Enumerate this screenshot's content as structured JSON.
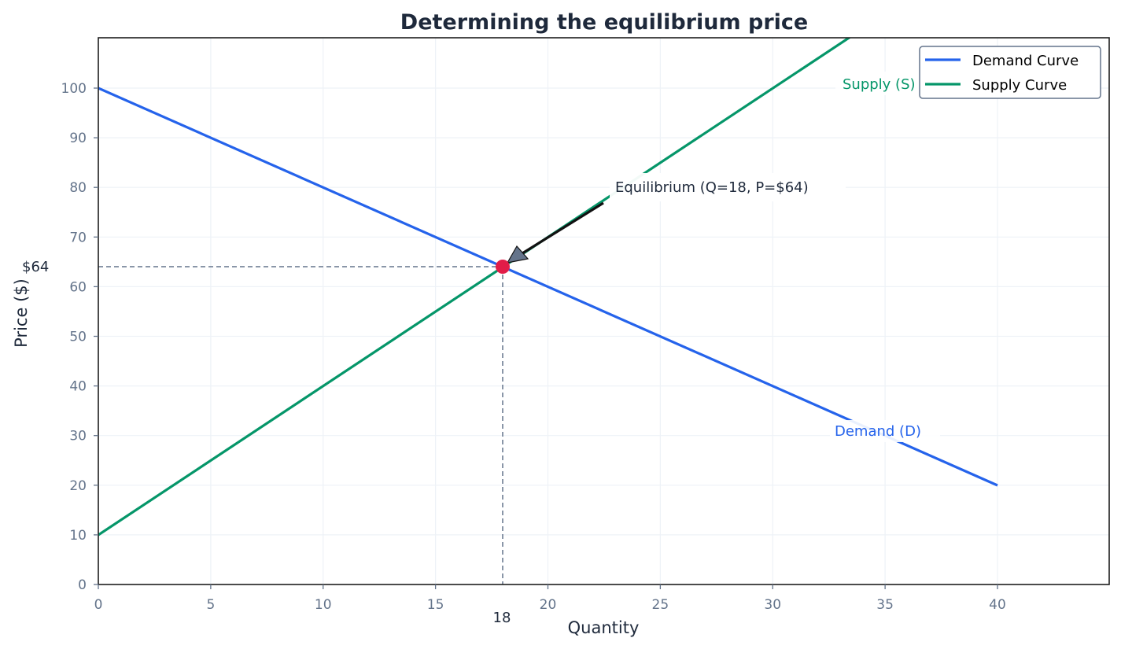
{
  "chart_data": {
    "type": "line",
    "title": "Determining the equilibrium price",
    "xlabel": "Quantity",
    "ylabel": "Price ($)",
    "xlim": [
      0,
      45
    ],
    "ylim": [
      0,
      110
    ],
    "xticks": [
      0,
      5,
      10,
      15,
      20,
      25,
      30,
      35,
      40
    ],
    "yticks": [
      0,
      10,
      20,
      30,
      40,
      50,
      60,
      70,
      80,
      90,
      100
    ],
    "grid": true,
    "legend_position": "upper right",
    "series": [
      {
        "name": "Demand Curve",
        "color": "#2563eb",
        "x": [
          0,
          40
        ],
        "y": [
          100,
          20
        ],
        "label": "Demand (D)",
        "label_at": [
          33,
          30
        ]
      },
      {
        "name": "Supply Curve",
        "color": "#059669",
        "x": [
          0,
          40
        ],
        "y": [
          10,
          130
        ],
        "label": "Supply (S)",
        "label_at": [
          33,
          100
        ]
      }
    ],
    "equilibrium": {
      "q": 18,
      "p": 64,
      "color": "#e11d48"
    },
    "annotations": [
      {
        "text": "Equilibrium (Q=18, P=$64)",
        "xy": [
          18,
          64
        ],
        "xytext": [
          23,
          80
        ]
      },
      {
        "text": "$64",
        "position": "y-axis",
        "value": 64
      },
      {
        "text": "18",
        "position": "x-axis",
        "value": 18
      }
    ]
  },
  "labels": {
    "title": "Determining the equilibrium price",
    "xlabel": "Quantity",
    "ylabel": "Price ($)",
    "demand_label": "Demand (D)",
    "supply_label": "Supply (S)",
    "eq_annotation": "Equilibrium (Q=18, P=$64)",
    "eq_price_label": "$64",
    "eq_qty_label": "18",
    "legend_demand": "Demand Curve",
    "legend_supply": "Supply Curve"
  },
  "colors": {
    "demand": "#2563eb",
    "supply": "#059669",
    "equilibrium": "#e11d48",
    "guide": "#64748b",
    "axis": "#1e1e1e"
  }
}
